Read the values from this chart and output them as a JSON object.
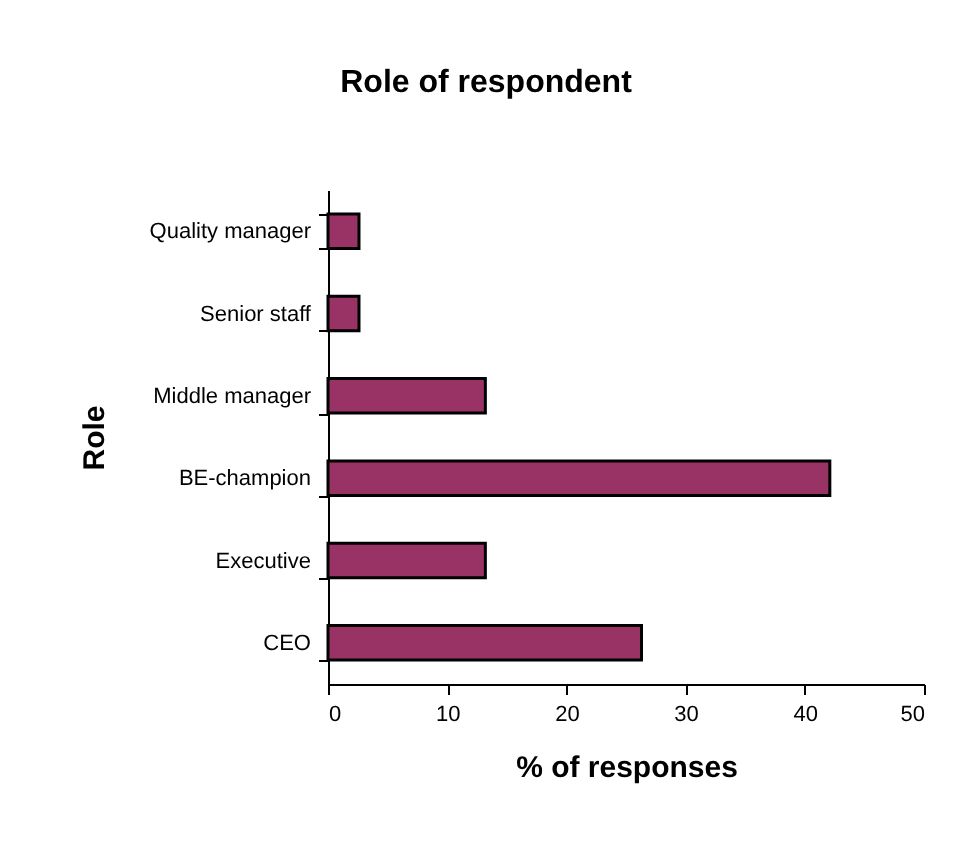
{
  "chart_data": {
    "type": "bar",
    "orientation": "horizontal",
    "title": "Role of respondent",
    "xlabel": "% of responses",
    "ylabel": "Role",
    "categories": [
      "Quality manager",
      "Senior staff",
      "Middle manager",
      "BE-champion",
      "Executive",
      "CEO"
    ],
    "values": [
      2.6,
      2.6,
      13.2,
      42.1,
      13.2,
      26.3
    ],
    "color": "#993366",
    "xlim": [
      0,
      50
    ],
    "xticks": [
      0,
      10,
      20,
      30,
      40,
      50
    ]
  }
}
